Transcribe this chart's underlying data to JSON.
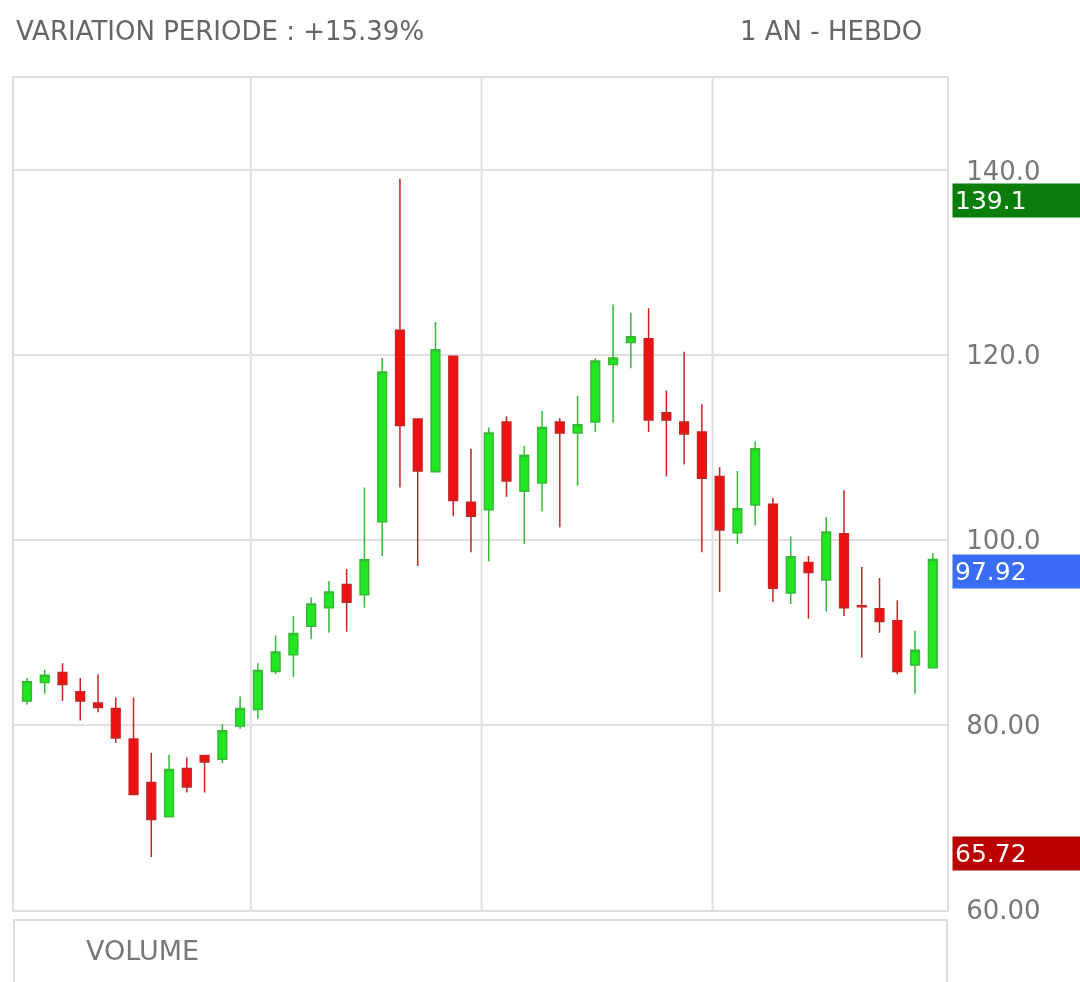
{
  "chart_data": {
    "type": "candlestick",
    "title": "VARIATION PERIODE : +15.39%",
    "subtitle": "1 AN - HEBDO",
    "categories": [
      null,
      null,
      null,
      null,
      null,
      null,
      null,
      null,
      null,
      null,
      null,
      null,
      null,
      null,
      null,
      null,
      null,
      null,
      null,
      null,
      null,
      null,
      null,
      null,
      null,
      null,
      null,
      null,
      null,
      null,
      null,
      null,
      null,
      null,
      null,
      null,
      null,
      null,
      null,
      null,
      null,
      null,
      null,
      null,
      null,
      null,
      null,
      null,
      null,
      null,
      null,
      null
    ],
    "ohlc": [
      [
        82.6,
        85.1,
        82.2,
        84.7
      ],
      [
        84.6,
        86.0,
        83.4,
        85.4
      ],
      [
        85.7,
        86.7,
        82.6,
        84.4
      ],
      [
        83.6,
        85.1,
        80.5,
        82.6
      ],
      [
        82.4,
        85.5,
        81.4,
        81.9
      ],
      [
        81.8,
        83.0,
        78.1,
        78.6
      ],
      [
        78.5,
        83.0,
        72.5,
        72.5
      ],
      [
        73.8,
        77.0,
        65.72,
        69.8
      ],
      [
        70.1,
        76.8,
        70.1,
        75.2
      ],
      [
        75.3,
        76.5,
        72.7,
        73.3
      ],
      [
        76.7,
        76.7,
        72.7,
        76.0
      ],
      [
        76.3,
        80.1,
        75.9,
        79.4
      ],
      [
        79.9,
        83.1,
        79.6,
        81.8
      ],
      [
        81.7,
        86.7,
        80.7,
        85.9
      ],
      [
        85.8,
        89.7,
        85.5,
        87.9
      ],
      [
        87.6,
        91.8,
        85.2,
        89.9
      ],
      [
        90.7,
        93.8,
        89.3,
        93.1
      ],
      [
        92.7,
        95.6,
        90.0,
        94.4
      ],
      [
        95.2,
        96.9,
        90.1,
        93.3
      ],
      [
        94.1,
        105.7,
        92.7,
        97.9
      ],
      [
        102.0,
        119.7,
        98.3,
        118.2
      ],
      [
        122.7,
        139.1,
        105.7,
        112.4
      ],
      [
        113.1,
        113.1,
        97.2,
        107.5
      ],
      [
        107.4,
        123.6,
        107.4,
        120.6
      ],
      [
        119.9,
        119.9,
        102.6,
        104.3
      ],
      [
        104.1,
        109.9,
        98.7,
        102.6
      ],
      [
        103.3,
        112.2,
        97.7,
        111.6
      ],
      [
        112.8,
        113.4,
        104.7,
        106.4
      ],
      [
        105.3,
        110.2,
        99.6,
        109.2
      ],
      [
        106.2,
        114.0,
        103.1,
        112.2
      ],
      [
        112.8,
        113.2,
        101.4,
        111.6
      ],
      [
        111.6,
        115.6,
        105.9,
        112.5
      ],
      [
        112.8,
        119.7,
        111.7,
        119.4
      ],
      [
        119.0,
        125.5,
        112.7,
        119.7
      ],
      [
        121.4,
        124.6,
        118.6,
        122.0
      ],
      [
        121.8,
        125.1,
        111.7,
        113.0
      ],
      [
        113.8,
        116.2,
        106.9,
        113.0
      ],
      [
        112.8,
        120.4,
        108.2,
        111.5
      ],
      [
        111.7,
        114.7,
        98.7,
        106.7
      ],
      [
        106.9,
        107.9,
        94.4,
        101.1
      ],
      [
        100.8,
        107.5,
        99.6,
        103.4
      ],
      [
        103.8,
        110.7,
        101.6,
        109.9
      ],
      [
        103.9,
        104.6,
        93.3,
        94.8
      ],
      [
        94.3,
        100.4,
        93.1,
        98.2
      ],
      [
        97.6,
        98.3,
        91.5,
        96.5
      ],
      [
        95.7,
        102.5,
        92.3,
        100.9
      ],
      [
        100.7,
        105.4,
        91.8,
        92.7
      ],
      [
        92.9,
        97.1,
        87.3,
        92.8
      ],
      [
        92.6,
        95.9,
        90.0,
        91.2
      ],
      [
        91.3,
        93.5,
        85.5,
        85.8
      ],
      [
        86.5,
        90.2,
        83.4,
        88.1
      ],
      [
        86.2,
        98.6,
        86.2,
        97.92
      ]
    ],
    "ylim": [
      60,
      150
    ],
    "yticks": [
      {
        "value": 60,
        "label": "60.00"
      },
      {
        "value": 80,
        "label": "80.00"
      },
      {
        "value": 100,
        "label": "100.0"
      },
      {
        "value": 120,
        "label": "120.0"
      },
      {
        "value": 140,
        "label": "140.0"
      }
    ],
    "grid": true,
    "tick_labels": "y",
    "annotations": [
      "139.1",
      "97.92",
      "65.72",
      "VOLUME"
    ]
  }
}
